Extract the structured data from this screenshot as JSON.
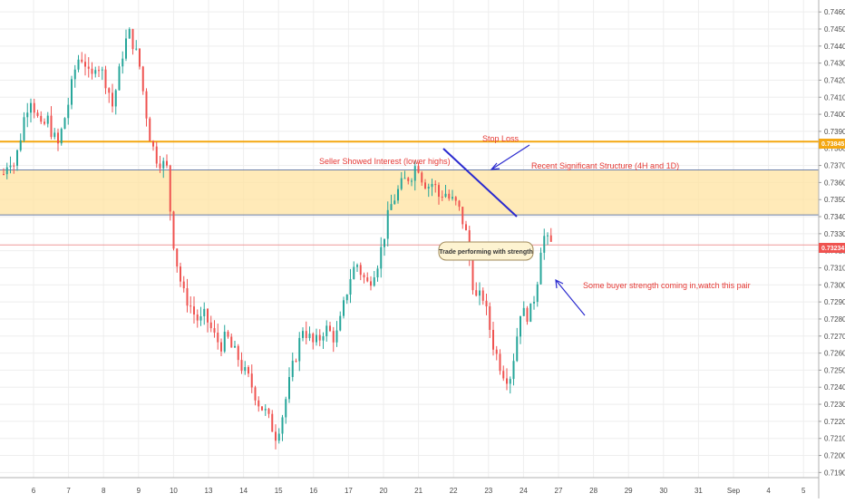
{
  "chart_data": {
    "type": "candlestick",
    "y_ticks": [
      "0.74600",
      "0.74500",
      "0.74400",
      "0.74300",
      "0.74200",
      "0.74100",
      "0.74000",
      "0.73900",
      "0.73800",
      "0.73700",
      "0.73600",
      "0.73500",
      "0.73400",
      "0.73300",
      "0.73200",
      "0.73100",
      "0.73000",
      "0.72900",
      "0.72800",
      "0.72700",
      "0.72600",
      "0.72500",
      "0.72400",
      "0.72300",
      "0.72200",
      "0.72100",
      "0.72000",
      "0.71900"
    ],
    "x_ticks": [
      "6",
      "7",
      "8",
      "9",
      "10",
      "13",
      "14",
      "15",
      "16",
      "17",
      "20",
      "21",
      "22",
      "23",
      "24",
      "27",
      "28",
      "29",
      "30",
      "31",
      "Sep",
      "4",
      "5"
    ],
    "ylim": [
      0.7187,
      0.7467
    ],
    "stop_loss_level": 0.7384,
    "stop_loss_label": "0.73845",
    "current_price": 0.73234,
    "current_price_label": "0.73234",
    "zone": [
      0.7341,
      0.73674
    ],
    "annotations": {
      "stop_loss": "Stop Loss",
      "seller": "Seller Showed Interest (lower highs)",
      "structure": "Recent Significant Structure (4H and 1D)",
      "trade": "Trade performing with strength",
      "buyer": "Some buyer strength coming in,watch this pair"
    },
    "price_path": [
      [
        0,
        0.7365
      ],
      [
        4,
        0.7375
      ],
      [
        8,
        0.737
      ],
      [
        12,
        0.7385
      ],
      [
        16,
        0.7402
      ],
      [
        20,
        0.741
      ],
      [
        24,
        0.74
      ],
      [
        28,
        0.739
      ],
      [
        32,
        0.7398
      ],
      [
        36,
        0.7388
      ],
      [
        40,
        0.7382
      ],
      [
        44,
        0.7395
      ],
      [
        48,
        0.7408
      ],
      [
        52,
        0.7425
      ],
      [
        56,
        0.7435
      ],
      [
        60,
        0.743
      ],
      [
        64,
        0.7418
      ],
      [
        68,
        0.7432
      ],
      [
        72,
        0.7425
      ],
      [
        76,
        0.7418
      ],
      [
        80,
        0.7405
      ],
      [
        84,
        0.742
      ],
      [
        88,
        0.7438
      ],
      [
        92,
        0.7448
      ],
      [
        96,
        0.744
      ],
      [
        100,
        0.7428
      ],
      [
        104,
        0.7405
      ],
      [
        108,
        0.7385
      ],
      [
        112,
        0.7375
      ],
      [
        116,
        0.7372
      ],
      [
        120,
        0.7368
      ],
      [
        124,
        0.733
      ],
      [
        128,
        0.731
      ],
      [
        132,
        0.7295
      ],
      [
        136,
        0.729
      ],
      [
        140,
        0.7283
      ],
      [
        144,
        0.7278
      ],
      [
        148,
        0.7282
      ],
      [
        152,
        0.7275
      ],
      [
        156,
        0.7268
      ],
      [
        160,
        0.7265
      ],
      [
        164,
        0.727
      ],
      [
        168,
        0.7262
      ],
      [
        172,
        0.7258
      ],
      [
        176,
        0.725
      ],
      [
        180,
        0.7245
      ],
      [
        184,
        0.7238
      ],
      [
        188,
        0.723
      ],
      [
        192,
        0.7226
      ],
      [
        196,
        0.7219
      ],
      [
        200,
        0.7212
      ],
      [
        204,
        0.722
      ],
      [
        208,
        0.7235
      ],
      [
        212,
        0.725
      ],
      [
        216,
        0.7262
      ],
      [
        220,
        0.7275
      ],
      [
        224,
        0.727
      ],
      [
        228,
        0.7265
      ],
      [
        232,
        0.7268
      ],
      [
        236,
        0.7275
      ],
      [
        240,
        0.7272
      ],
      [
        244,
        0.7268
      ],
      [
        248,
        0.728
      ],
      [
        252,
        0.7295
      ],
      [
        256,
        0.7308
      ],
      [
        260,
        0.7312
      ],
      [
        264,
        0.7305
      ],
      [
        268,
        0.73
      ],
      [
        272,
        0.7308
      ],
      [
        276,
        0.7315
      ],
      [
        280,
        0.733
      ],
      [
        284,
        0.7345
      ],
      [
        288,
        0.7352
      ],
      [
        292,
        0.7358
      ],
      [
        296,
        0.7362
      ],
      [
        300,
        0.7365
      ],
      [
        304,
        0.7372
      ],
      [
        308,
        0.7362
      ],
      [
        312,
        0.7358
      ],
      [
        316,
        0.736
      ],
      [
        320,
        0.7352
      ],
      [
        324,
        0.7355
      ],
      [
        328,
        0.735
      ],
      [
        332,
        0.7348
      ],
      [
        336,
        0.7342
      ],
      [
        340,
        0.733
      ],
      [
        344,
        0.7305
      ],
      [
        348,
        0.729
      ],
      [
        352,
        0.7295
      ],
      [
        356,
        0.728
      ],
      [
        360,
        0.7265
      ],
      [
        364,
        0.7255
      ],
      [
        368,
        0.7248
      ],
      [
        372,
        0.7245
      ],
      [
        376,
        0.7262
      ],
      [
        380,
        0.7285
      ],
      [
        384,
        0.7282
      ],
      [
        388,
        0.7285
      ],
      [
        392,
        0.73
      ],
      [
        396,
        0.733
      ],
      [
        400,
        0.7325
      ],
      [
        404,
        0.7323
      ]
    ]
  }
}
